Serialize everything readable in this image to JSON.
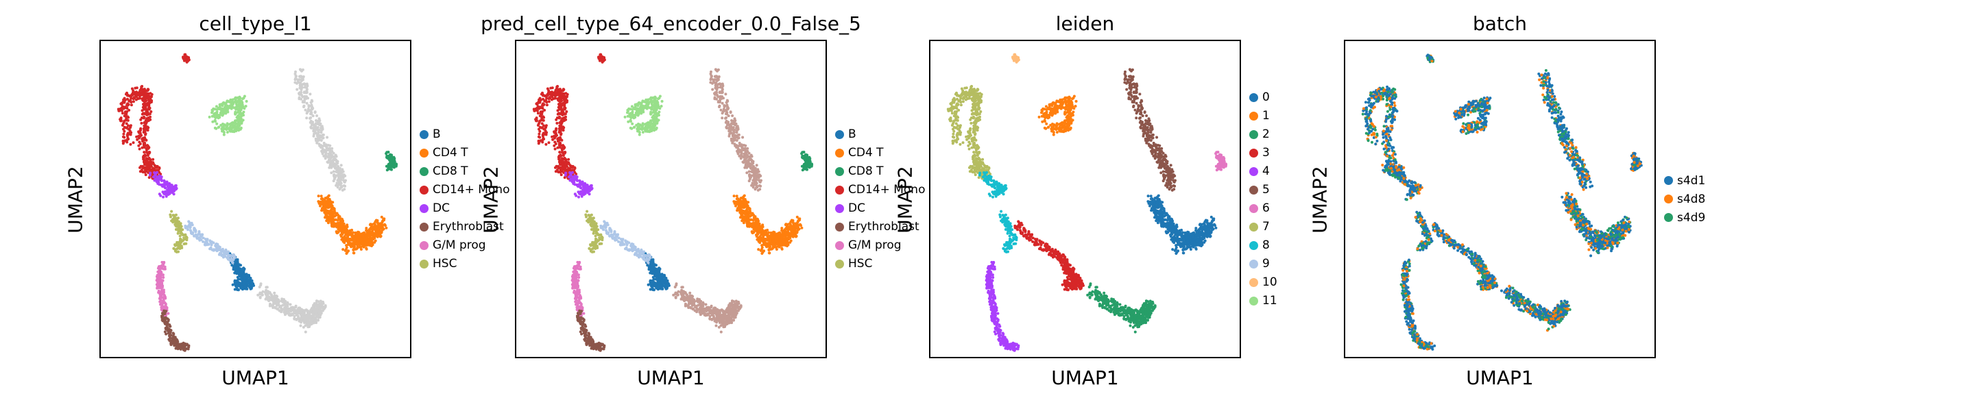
{
  "figure": {
    "x_label": "UMAP1",
    "y_label": "UMAP2"
  },
  "chart_data": [
    {
      "type": "scatter",
      "title": "cell_type_l1",
      "xlabel": "UMAP1",
      "ylabel": "UMAP2",
      "color_by": "cell_type_l1",
      "legend_placement": "right",
      "legend": [
        {
          "label": "B",
          "color": "#1f77b4"
        },
        {
          "label": "CD4 T",
          "color": "#ff7f0e"
        },
        {
          "label": "CD8 T",
          "color": "#279e68"
        },
        {
          "label": "CD14+ Mono",
          "color": "#d62728"
        },
        {
          "label": "DC",
          "color": "#aa40fc"
        },
        {
          "label": "Erythroblast",
          "color": "#8c564b"
        },
        {
          "label": "G/M prog",
          "color": "#e377c2"
        },
        {
          "label": "HSC",
          "color": "#b5bd61"
        }
      ],
      "clusters": [
        {
          "region": "top-left arc",
          "color": "#d62728"
        },
        {
          "region": "top-center",
          "color": "#98df8a"
        },
        {
          "region": "top-right column",
          "color": "#cfcfcf"
        },
        {
          "region": "right blob",
          "color": "#ff7f0e"
        },
        {
          "region": "far right",
          "color": "#279e68"
        },
        {
          "region": "lower middle",
          "color": "#1f77b4"
        },
        {
          "region": "bottom right",
          "color": "#cfcfcf"
        },
        {
          "region": "bottom left",
          "color": "#8c564b"
        }
      ]
    },
    {
      "type": "scatter",
      "title": "pred_cell_type_64_encoder_0.0_False_5",
      "xlabel": "UMAP1",
      "ylabel": "UMAP2",
      "legend_placement": "right",
      "legend": [
        {
          "label": "B",
          "color": "#1f77b4"
        },
        {
          "label": "CD4 T",
          "color": "#ff7f0e"
        },
        {
          "label": "CD8 T",
          "color": "#279e68"
        },
        {
          "label": "CD14+ Mono",
          "color": "#d62728"
        },
        {
          "label": "DC",
          "color": "#aa40fc"
        },
        {
          "label": "Erythroblast",
          "color": "#8c564b"
        },
        {
          "label": "G/M prog",
          "color": "#e377c2"
        },
        {
          "label": "HSC",
          "color": "#b5bd61"
        }
      ]
    },
    {
      "type": "scatter",
      "title": "leiden",
      "xlabel": "UMAP1",
      "ylabel": "UMAP2",
      "legend_placement": "right",
      "legend": [
        {
          "label": "0",
          "color": "#1f77b4"
        },
        {
          "label": "1",
          "color": "#ff7f0e"
        },
        {
          "label": "2",
          "color": "#279e68"
        },
        {
          "label": "3",
          "color": "#d62728"
        },
        {
          "label": "4",
          "color": "#aa40fc"
        },
        {
          "label": "5",
          "color": "#8c564b"
        },
        {
          "label": "6",
          "color": "#e377c2"
        },
        {
          "label": "7",
          "color": "#b5bd61"
        },
        {
          "label": "8",
          "color": "#17becf"
        },
        {
          "label": "9",
          "color": "#aec7e8"
        },
        {
          "label": "10",
          "color": "#ffbb78"
        },
        {
          "label": "11",
          "color": "#98df8a"
        }
      ]
    },
    {
      "type": "scatter",
      "title": "batch",
      "xlabel": "UMAP1",
      "ylabel": "UMAP2",
      "legend_placement": "right",
      "legend": [
        {
          "label": "s4d1",
          "color": "#1f77b4"
        },
        {
          "label": "s4d8",
          "color": "#ff7f0e"
        },
        {
          "label": "s4d9",
          "color": "#279e68"
        }
      ]
    }
  ]
}
